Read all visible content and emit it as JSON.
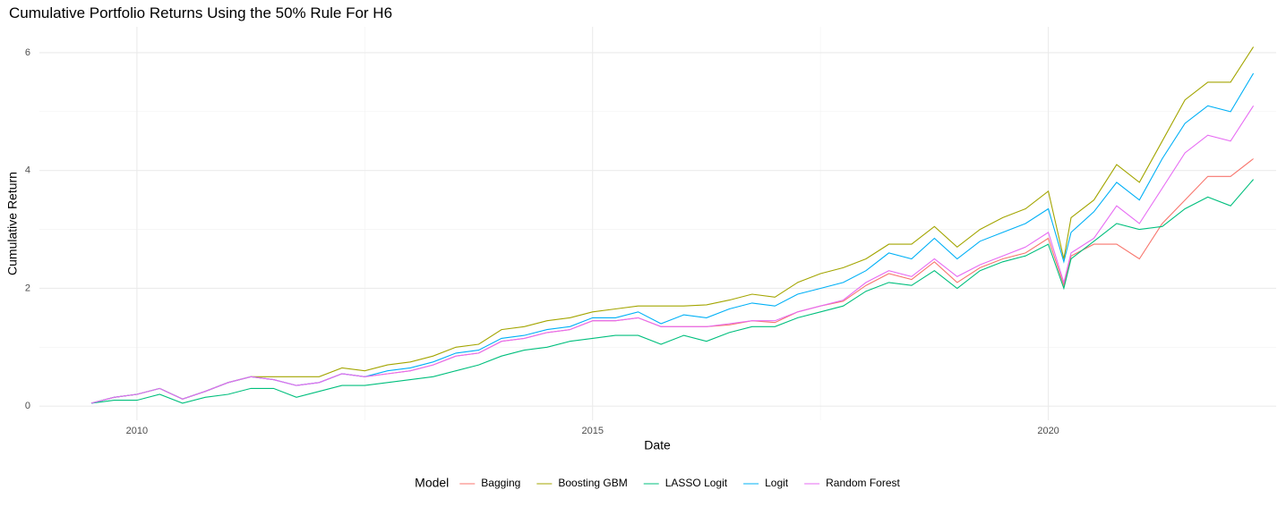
{
  "chart_data": {
    "type": "line",
    "title": "Cumulative Portfolio Returns Using the 50% Rule For H6",
    "x_label": "Date",
    "y_label": "Cumulative Return",
    "legend_title": "Model",
    "legend_position": "bottom",
    "grid": true,
    "x": [
      2009.5,
      2009.75,
      2010,
      2010.25,
      2010.5,
      2010.75,
      2011,
      2011.25,
      2011.5,
      2011.75,
      2012,
      2012.25,
      2012.5,
      2012.75,
      2013,
      2013.25,
      2013.5,
      2013.75,
      2014,
      2014.25,
      2014.5,
      2014.75,
      2015,
      2015.25,
      2015.5,
      2015.75,
      2016,
      2016.25,
      2016.5,
      2016.75,
      2017,
      2017.25,
      2017.5,
      2017.75,
      2018,
      2018.25,
      2018.5,
      2018.75,
      2019,
      2019.25,
      2019.5,
      2019.75,
      2020,
      2020.17,
      2020.25,
      2020.5,
      2020.75,
      2021,
      2021.25,
      2021.5,
      2021.75,
      2022,
      2022.25
    ],
    "xlim": [
      2008.93,
      2022.5
    ],
    "xticks": [
      2010,
      2015,
      2020
    ],
    "ylim": [
      -0.24,
      6.44
    ],
    "yticks": [
      0,
      2,
      4,
      6
    ],
    "series": [
      {
        "name": "Bagging",
        "color": "#F8766D",
        "values": [
          0.05,
          0.15,
          0.2,
          0.3,
          0.12,
          0.25,
          0.4,
          0.5,
          0.45,
          0.35,
          0.4,
          0.55,
          0.5,
          0.55,
          0.6,
          0.7,
          0.85,
          0.9,
          1.1,
          1.15,
          1.25,
          1.3,
          1.45,
          1.45,
          1.5,
          1.35,
          1.35,
          1.35,
          1.38,
          1.45,
          1.42,
          1.6,
          1.7,
          1.78,
          2.05,
          2.25,
          2.15,
          2.45,
          2.1,
          2.35,
          2.5,
          2.6,
          2.85,
          2.05,
          2.55,
          2.75,
          2.75,
          2.5,
          3.1,
          3.5,
          3.9,
          3.9,
          4.2
        ]
      },
      {
        "name": "Boosting GBM",
        "color": "#A3A500",
        "values": [
          0.05,
          0.15,
          0.2,
          0.3,
          0.12,
          0.25,
          0.4,
          0.5,
          0.5,
          0.5,
          0.5,
          0.65,
          0.6,
          0.7,
          0.75,
          0.85,
          1.0,
          1.05,
          1.3,
          1.35,
          1.45,
          1.5,
          1.6,
          1.65,
          1.7,
          1.7,
          1.7,
          1.72,
          1.8,
          1.9,
          1.85,
          2.1,
          2.25,
          2.35,
          2.5,
          2.75,
          2.75,
          3.05,
          2.7,
          3.0,
          3.2,
          3.35,
          3.65,
          2.5,
          3.2,
          3.5,
          4.1,
          3.8,
          4.5,
          5.2,
          5.5,
          5.5,
          6.1
        ]
      },
      {
        "name": "LASSO Logit",
        "color": "#00BF7D",
        "values": [
          0.05,
          0.1,
          0.1,
          0.2,
          0.05,
          0.15,
          0.2,
          0.3,
          0.3,
          0.15,
          0.25,
          0.35,
          0.35,
          0.4,
          0.45,
          0.5,
          0.6,
          0.7,
          0.85,
          0.95,
          1.0,
          1.1,
          1.15,
          1.2,
          1.2,
          1.05,
          1.2,
          1.1,
          1.25,
          1.35,
          1.35,
          1.5,
          1.6,
          1.7,
          1.95,
          2.1,
          2.05,
          2.3,
          2.0,
          2.3,
          2.45,
          2.55,
          2.75,
          2.0,
          2.5,
          2.8,
          3.1,
          3.0,
          3.05,
          3.35,
          3.55,
          3.4,
          3.85
        ]
      },
      {
        "name": "Logit",
        "color": "#00B0F6",
        "values": [
          0.05,
          0.15,
          0.2,
          0.3,
          0.12,
          0.25,
          0.4,
          0.5,
          0.45,
          0.35,
          0.4,
          0.55,
          0.5,
          0.6,
          0.65,
          0.75,
          0.9,
          0.95,
          1.15,
          1.2,
          1.3,
          1.35,
          1.5,
          1.5,
          1.6,
          1.4,
          1.55,
          1.5,
          1.65,
          1.75,
          1.7,
          1.9,
          2.0,
          2.1,
          2.3,
          2.6,
          2.5,
          2.85,
          2.5,
          2.8,
          2.95,
          3.1,
          3.35,
          2.45,
          2.95,
          3.3,
          3.8,
          3.5,
          4.2,
          4.8,
          5.1,
          5.0,
          5.65
        ]
      },
      {
        "name": "Random Forest",
        "color": "#E76BF3",
        "values": [
          0.05,
          0.15,
          0.2,
          0.3,
          0.12,
          0.25,
          0.4,
          0.5,
          0.45,
          0.35,
          0.4,
          0.55,
          0.5,
          0.55,
          0.6,
          0.7,
          0.85,
          0.9,
          1.1,
          1.15,
          1.25,
          1.3,
          1.45,
          1.45,
          1.5,
          1.35,
          1.35,
          1.35,
          1.4,
          1.45,
          1.45,
          1.6,
          1.7,
          1.8,
          2.1,
          2.3,
          2.2,
          2.5,
          2.2,
          2.4,
          2.55,
          2.7,
          2.95,
          2.1,
          2.6,
          2.85,
          3.4,
          3.1,
          3.7,
          4.3,
          4.6,
          4.5,
          5.1
        ]
      }
    ]
  }
}
